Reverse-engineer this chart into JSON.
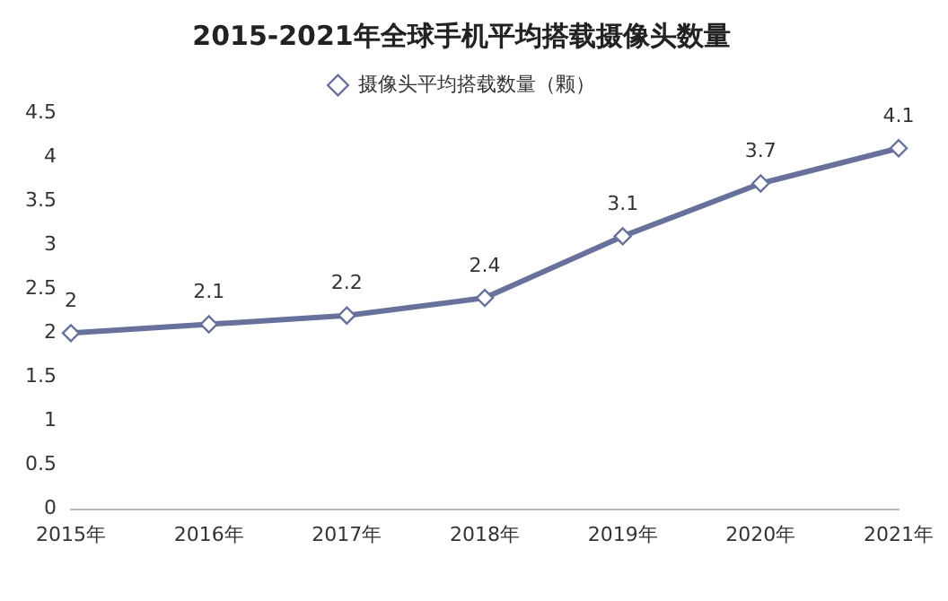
{
  "chart_data": {
    "type": "line",
    "title": "2015-2021年全球手机平均搭载摄像头数量",
    "categories": [
      "2015年",
      "2016年",
      "2017年",
      "2018年",
      "2019年",
      "2020年",
      "2021年"
    ],
    "series": [
      {
        "name": "摄像头平均搭载数量（颗）",
        "color": "#68719b",
        "values": [
          2,
          2.1,
          2.2,
          2.4,
          3.1,
          3.7,
          4.1
        ]
      }
    ],
    "ylim": [
      0,
      4.5
    ],
    "yticks": [
      0,
      0.5,
      1,
      1.5,
      2,
      2.5,
      3,
      3.5,
      4,
      4.5
    ],
    "grid": false,
    "legend": "top",
    "marker": "diamond",
    "line_style": "solid",
    "data_labels": true
  }
}
